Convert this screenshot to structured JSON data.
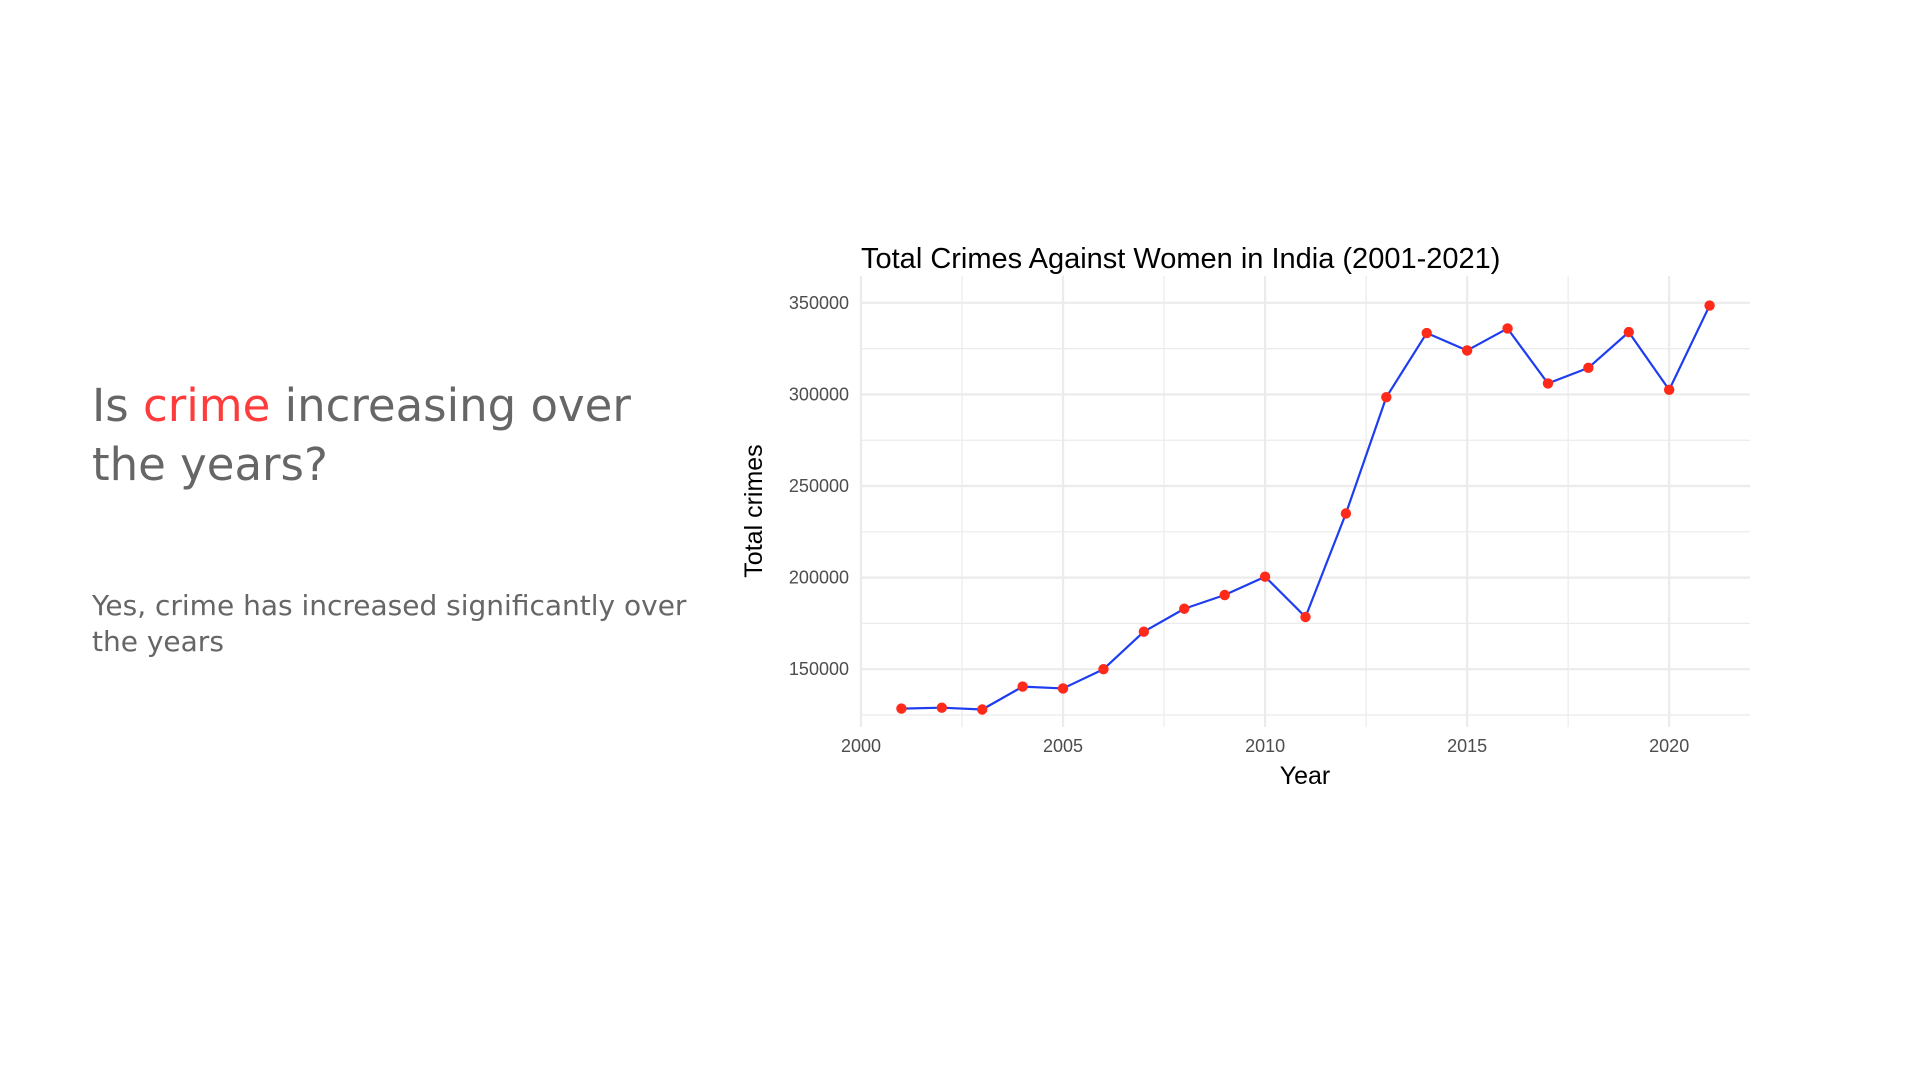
{
  "slide": {
    "heading_before": "Is ",
    "heading_highlight": "crime",
    "heading_after": " increasing over the years?",
    "body": "Yes, crime has increased significantly over the years",
    "text_color": "#666666",
    "highlight_color": "#ff3b3b"
  },
  "chart_data": {
    "type": "line",
    "title": "Total Crimes Against Women in India (2001-2021)",
    "xlabel": "Year",
    "ylabel": "Total crimes",
    "x": [
      2001,
      2002,
      2003,
      2004,
      2005,
      2006,
      2007,
      2008,
      2009,
      2010,
      2011,
      2012,
      2013,
      2014,
      2015,
      2016,
      2017,
      2018,
      2019,
      2020,
      2021
    ],
    "series": [
      {
        "name": "Total crimes",
        "values": [
          128500,
          129000,
          128000,
          140500,
          139500,
          150000,
          170500,
          183000,
          190500,
          200500,
          178500,
          235000,
          298500,
          333500,
          324000,
          336000,
          306000,
          314500,
          334000,
          302500,
          348500
        ],
        "line_color": "#1e3df0",
        "point_color": "#ff2a1a"
      }
    ],
    "xlim": [
      2000,
      2022
    ],
    "ylim": [
      125000,
      357000
    ],
    "xticks": [
      2000,
      2005,
      2010,
      2015,
      2020
    ],
    "yticks": [
      150000,
      200000,
      250000,
      300000,
      350000
    ],
    "xtick_labels": [
      "2000",
      "2005",
      "2010",
      "2015",
      "2020"
    ],
    "ytick_labels": [
      "150000",
      "200000",
      "250000",
      "300000",
      "350000"
    ],
    "grid": true,
    "legend": "none",
    "grid_color": "#ebebeb",
    "tick_label_color": "#4d4d4d",
    "title_color": "#000000"
  }
}
